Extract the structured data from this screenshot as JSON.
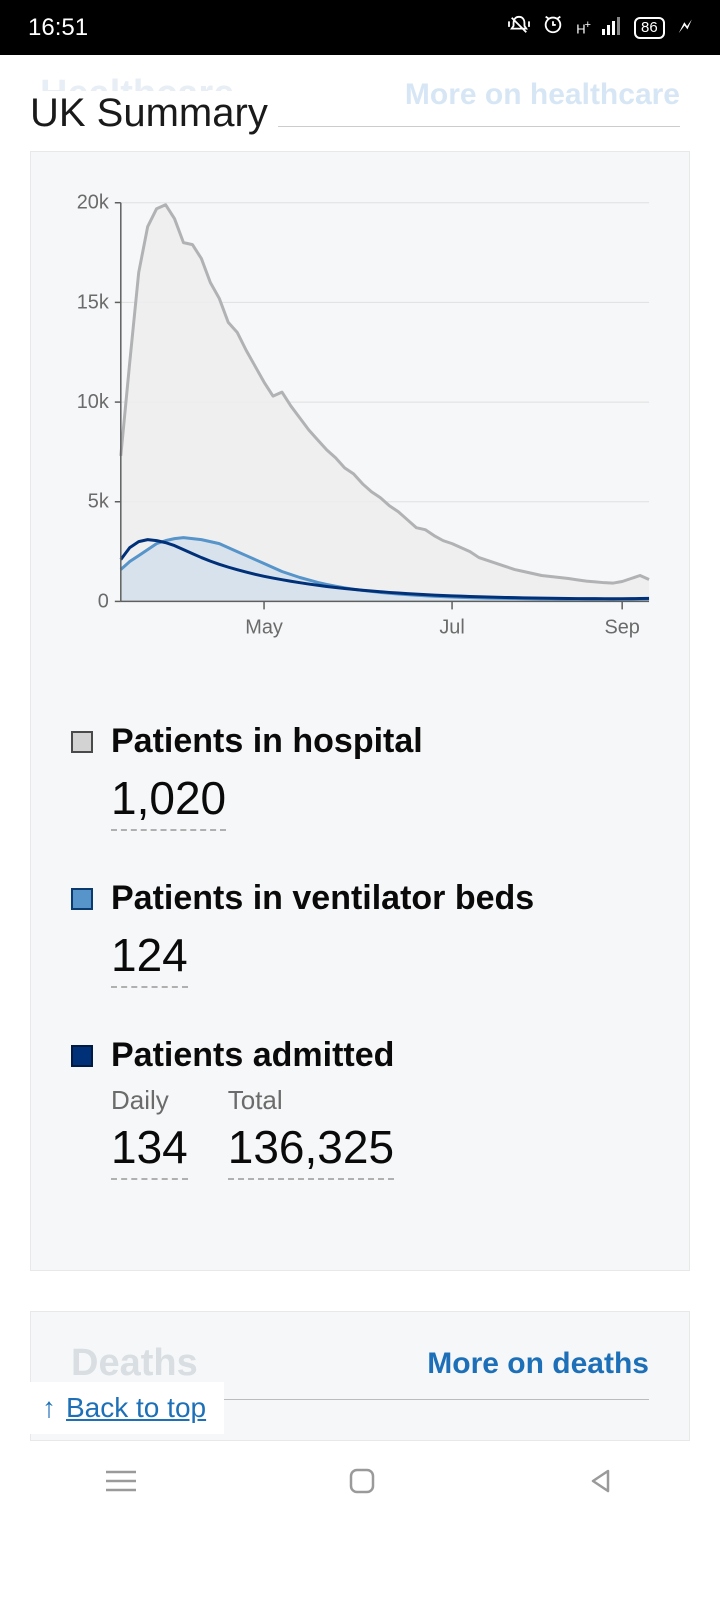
{
  "status": {
    "time": "16:51",
    "battery": "86",
    "network": "H+"
  },
  "header": {
    "faded_title": "Healthcare",
    "faded_link": "More on healthcare",
    "page_title": "UK Summary"
  },
  "chart": {
    "type": "line-area",
    "background_color": "#f6f7f8",
    "plot_bg": "#f6f7f8",
    "grid_color": "#e0e0e0",
    "axis_color": "#5f5f5f",
    "tick_fontsize": 20,
    "x_ticks": [
      "May",
      "Jul",
      "Sep"
    ],
    "y_ticks": [
      "0",
      "5k",
      "10k",
      "15k",
      "20k"
    ],
    "ylim": [
      0,
      20000
    ],
    "x_range_days": 180,
    "series": [
      {
        "key": "hospital",
        "color": "#b0b2b4",
        "fill": "#ededee",
        "stroke_width": 3,
        "values": [
          7300,
          12000,
          16500,
          18800,
          19700,
          19900,
          19200,
          18000,
          17900,
          17200,
          16000,
          15200,
          14000,
          13500,
          12600,
          11800,
          11000,
          10300,
          10500,
          9800,
          9200,
          8600,
          8100,
          7600,
          7200,
          6700,
          6400,
          5900,
          5500,
          5200,
          4800,
          4500,
          4100,
          3700,
          3600,
          3300,
          3050,
          2900,
          2700,
          2500,
          2200,
          2050,
          1900,
          1750,
          1600,
          1500,
          1400,
          1300,
          1250,
          1200,
          1150,
          1080,
          1020,
          980,
          940,
          920,
          1000,
          1150,
          1300,
          1100
        ]
      },
      {
        "key": "ventilator",
        "color": "#5694ca",
        "fill": "#c5d7ea",
        "stroke_width": 3,
        "values": [
          1600,
          2000,
          2300,
          2600,
          2900,
          3050,
          3150,
          3200,
          3150,
          3100,
          3000,
          2900,
          2700,
          2500,
          2300,
          2100,
          1900,
          1700,
          1500,
          1350,
          1200,
          1080,
          950,
          850,
          760,
          680,
          610,
          550,
          500,
          450,
          410,
          370,
          340,
          310,
          285,
          260,
          240,
          220,
          205,
          190,
          178,
          168,
          158,
          150,
          144,
          138,
          133,
          128,
          125,
          124,
          122,
          120,
          118,
          117,
          116,
          115,
          118,
          122,
          128,
          135
        ]
      },
      {
        "key": "admitted",
        "color": "#003078",
        "fill": "none",
        "stroke_width": 3,
        "values": [
          2100,
          2700,
          3000,
          3100,
          3050,
          2950,
          2800,
          2600,
          2400,
          2200,
          2020,
          1860,
          1720,
          1590,
          1470,
          1360,
          1260,
          1170,
          1090,
          1010,
          940,
          870,
          810,
          750,
          700,
          650,
          605,
          560,
          520,
          485,
          450,
          420,
          390,
          365,
          340,
          318,
          298,
          280,
          264,
          249,
          235,
          222,
          210,
          199,
          189,
          180,
          172,
          165,
          159,
          153,
          148,
          143,
          139,
          138,
          137,
          135,
          137,
          140,
          145,
          150
        ]
      }
    ]
  },
  "metrics": [
    {
      "label": "Patients in hospital",
      "legend_fill": "#d3d3d4",
      "legend_border": "#4a4a4a",
      "columns": [
        {
          "sub": "",
          "value": "1,020"
        }
      ]
    },
    {
      "label": "Patients in ventilator beds",
      "legend_fill": "#5694ca",
      "legend_border": "#0b3a6d",
      "columns": [
        {
          "sub": "",
          "value": "124"
        }
      ]
    },
    {
      "label": "Patients admitted",
      "legend_fill": "#003078",
      "legend_border": "#001a42",
      "columns": [
        {
          "sub": "Daily",
          "value": "134"
        },
        {
          "sub": "Total",
          "value": "136,325"
        }
      ]
    }
  ],
  "deaths": {
    "faded_title": "Deaths",
    "link": "More on deaths"
  },
  "back_to_top": "Back to top"
}
